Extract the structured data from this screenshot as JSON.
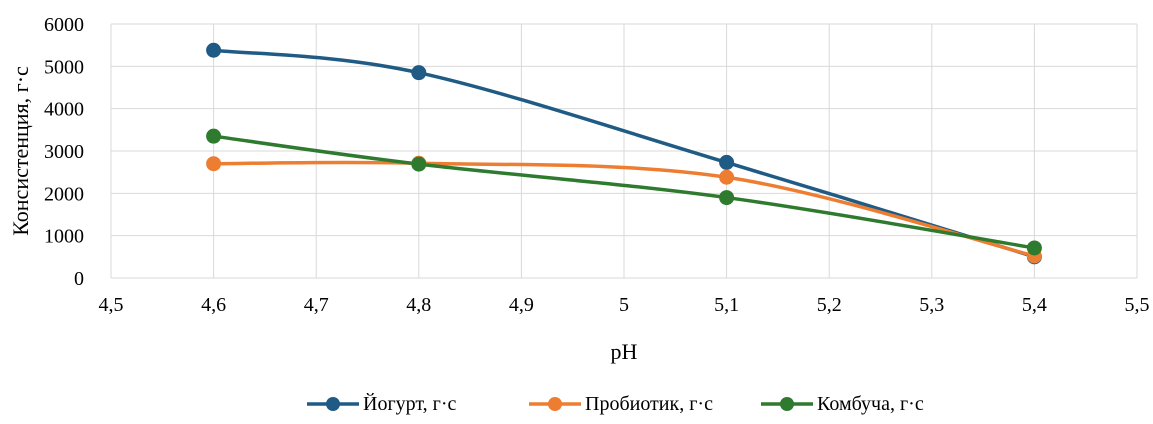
{
  "chart_data": {
    "type": "line",
    "title": "",
    "xlabel": "pH",
    "ylabel": "Консистенция, г·с",
    "xlim": [
      4.5,
      5.5
    ],
    "ylim": [
      0,
      6000
    ],
    "x_ticks": [
      "4,5",
      "4,6",
      "4,7",
      "4,8",
      "4,9",
      "5",
      "5,1",
      "5,2",
      "5,3",
      "5,4",
      "5,5"
    ],
    "y_ticks": [
      "0",
      "1000",
      "2000",
      "3000",
      "4000",
      "5000",
      "6000"
    ],
    "x": [
      4.6,
      4.8,
      5.1,
      5.4
    ],
    "grid": "vertical and horizontal",
    "smooth": true,
    "legend_position": "bottom",
    "series": [
      {
        "name": "Йогурт, г·с",
        "color": "#1f5b84",
        "values": [
          5380,
          4850,
          2730,
          500
        ]
      },
      {
        "name": "Пробиотик, г·с",
        "color": "#ed7d31",
        "values": [
          2700,
          2710,
          2380,
          520
        ]
      },
      {
        "name": "Комбуча, г·с",
        "color": "#2e7a2e",
        "values": [
          3350,
          2690,
          1900,
          710
        ]
      }
    ]
  }
}
